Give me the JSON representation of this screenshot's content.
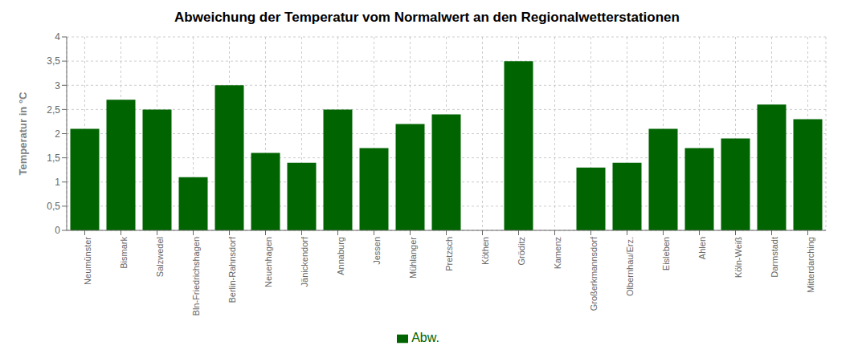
{
  "chart_data": {
    "type": "bar",
    "title": "Abweichung der Temperatur vom Normalwert an den Regionalwetterstationen",
    "ylabel": "Temperatur in °C",
    "categories": [
      "Neumünster",
      "Bismark",
      "Salzwedel",
      "Bln-Friedrichshagen",
      "Berlin-Rahnsdorf",
      "Neuenhagen",
      "Jänickendorf",
      "Annaburg",
      "Jessen",
      "Mühlanger",
      "Pretzsch",
      "Köthen",
      "Gröditz",
      "Kamenz",
      "Großerkmannsdorf",
      "Olbernhau/Erz.",
      "Eisleben",
      "Ahlen",
      "Köln-Weiß",
      "Darmstadt",
      "Mitterdarching"
    ],
    "series": [
      {
        "name": "Abw.",
        "color": "#006400",
        "values": [
          2.1,
          2.7,
          2.5,
          1.1,
          3.0,
          1.6,
          1.4,
          2.5,
          1.7,
          2.2,
          2.4,
          0.0,
          3.5,
          0.0,
          1.3,
          1.4,
          2.1,
          1.7,
          1.9,
          2.6,
          2.3
        ]
      }
    ],
    "ylim": [
      0,
      4
    ],
    "yticks": [
      0,
      {
        "value": 0.5,
        "label": "0,5"
      },
      1,
      {
        "value": 1.5,
        "label": "1,5"
      },
      2,
      {
        "value": 2.5,
        "label": "2,5"
      },
      3,
      {
        "value": 3.5,
        "label": "3,5"
      },
      4
    ],
    "grid": true,
    "legend": "bottom"
  }
}
